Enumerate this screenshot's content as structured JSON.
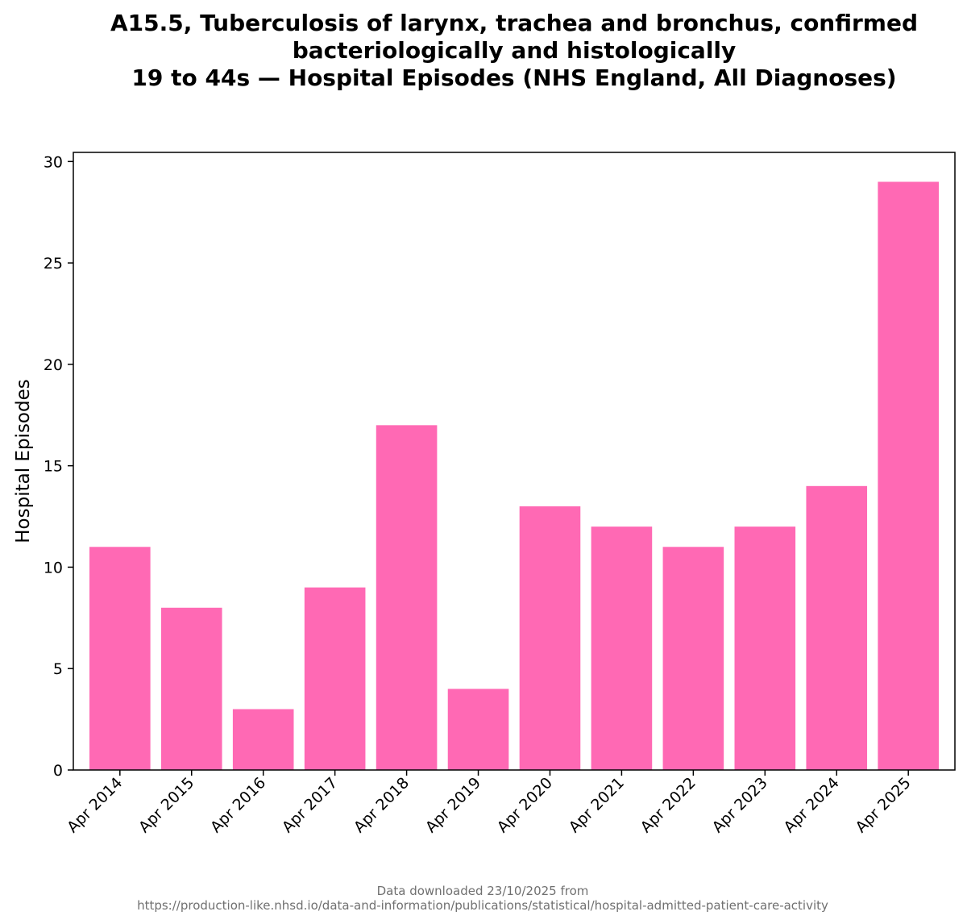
{
  "chart_data": {
    "type": "bar",
    "title_lines": [
      "A15.5, Tuberculosis of larynx, trachea and bronchus, confirmed",
      "bacteriologically and histologically",
      "19 to 44s — Hospital Episodes (NHS England, All Diagnoses)"
    ],
    "xlabel": "",
    "ylabel": "Hospital Episodes",
    "categories": [
      "Apr 2014",
      "Apr 2015",
      "Apr 2016",
      "Apr 2017",
      "Apr 2018",
      "Apr 2019",
      "Apr 2020",
      "Apr 2021",
      "Apr 2022",
      "Apr 2023",
      "Apr 2024",
      "Apr 2025"
    ],
    "values": [
      11,
      8,
      3,
      9,
      17,
      4,
      13,
      12,
      11,
      12,
      14,
      29
    ],
    "ylim": [
      0,
      30.45
    ],
    "yticks": [
      0,
      5,
      10,
      15,
      20,
      25,
      30
    ],
    "bar_color": "#ff69b4",
    "grid": false,
    "legend": "none"
  },
  "footer": {
    "line1": "Data downloaded 23/10/2025 from",
    "line2": "https://production-like.nhsd.io/data-and-information/publications/statistical/hospital-admitted-patient-care-activity"
  }
}
